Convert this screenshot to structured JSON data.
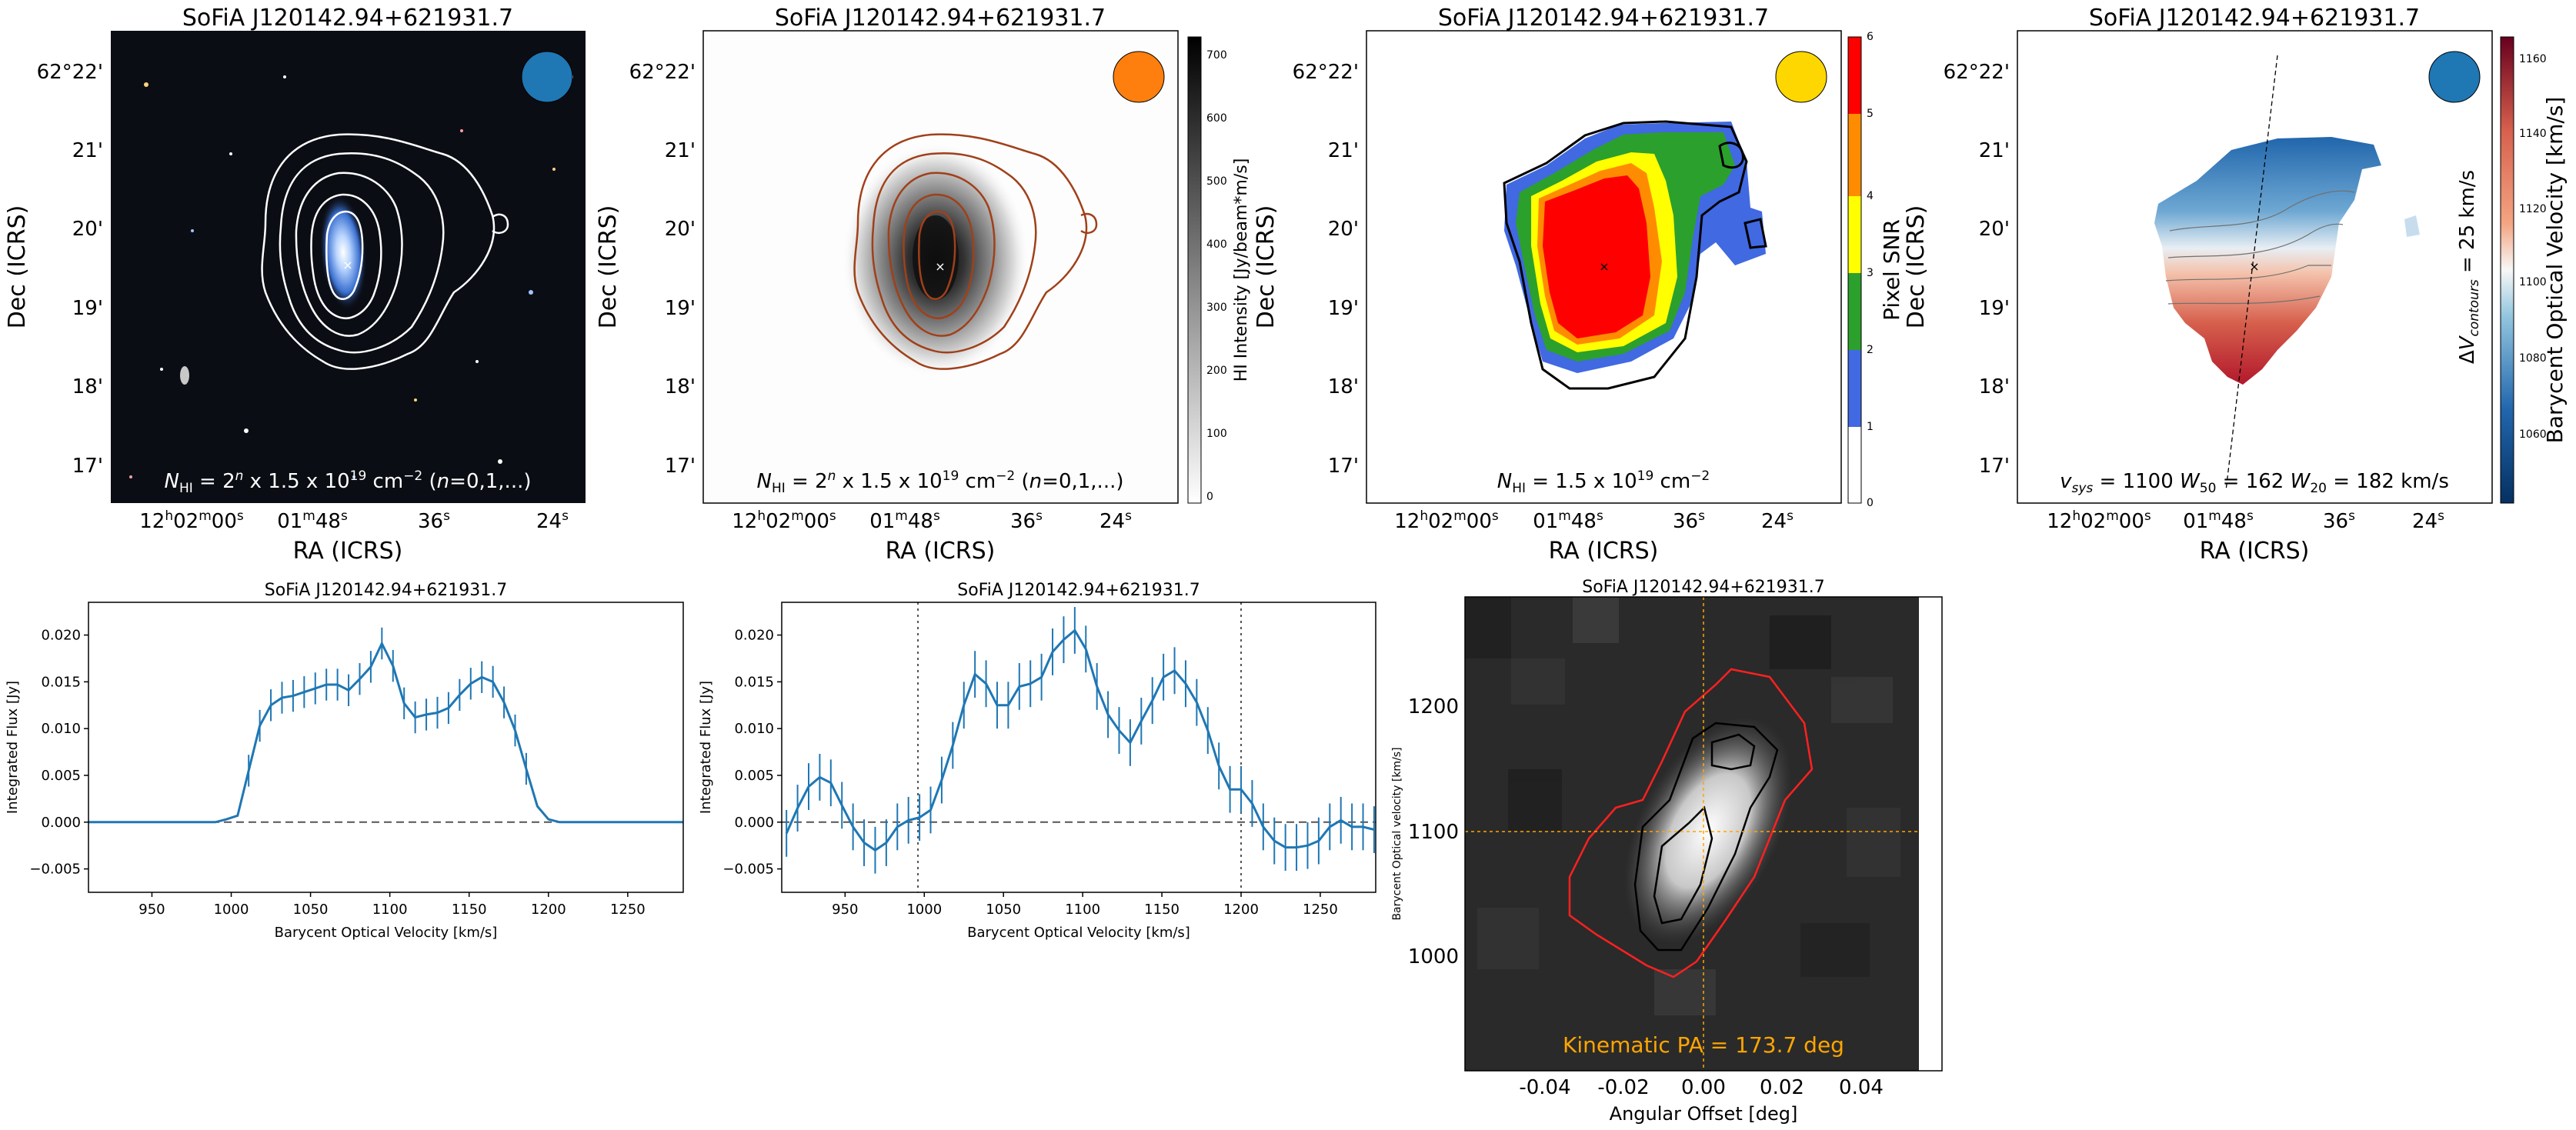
{
  "figure": {
    "panels_top": [
      {
        "title": "SoFiA J120142.94+621931.7",
        "xlabel": "RA (ICRS)",
        "ylabel": "Dec (ICRS)",
        "xticks": [
          "12h02m00s",
          "01m48s",
          "36s",
          "24s"
        ],
        "yticks": [
          "62°22'",
          "21'",
          "20'",
          "19'",
          "18'",
          "17'"
        ],
        "note_prefix": "N",
        "note_sub": "HI",
        "note_text": " = 2^n x 1.5 x 10^19 cm^-2 (n=0,1,...)",
        "beam_color": "#1f77b4",
        "contour_color": "#ffffff"
      },
      {
        "title": "SoFiA J120142.94+621931.7",
        "xlabel": "RA (ICRS)",
        "ylabel": "Dec (ICRS)",
        "xticks": [
          "12h02m00s",
          "01m48s",
          "36s",
          "24s"
        ],
        "yticks": [
          "62°22'",
          "21'",
          "20'",
          "19'",
          "18'",
          "17'"
        ],
        "note_prefix": "N",
        "note_sub": "HI",
        "note_text": " = 2^n x 1.5 x 10^19 cm^-2 (n=0,1,...)",
        "beam_color": "#ff7f0e",
        "contour_color": "#a0401a",
        "colorbar": {
          "label": "HI Intensity [Jy/beam*m/s]",
          "ticks": [
            "0",
            "100",
            "200",
            "300",
            "400",
            "500",
            "600",
            "700"
          ]
        }
      },
      {
        "title": "SoFiA J120142.94+621931.7",
        "xlabel": "RA (ICRS)",
        "ylabel": "Dec (ICRS)",
        "xticks": [
          "12h02m00s",
          "01m48s",
          "36s",
          "24s"
        ],
        "yticks": [
          "62°22'",
          "21'",
          "20'",
          "19'",
          "18'",
          "17'"
        ],
        "note_prefix": "N",
        "note_sub": "HI",
        "note_text": " = 1.5 x 10^19 cm^-2",
        "beam_color": "#ffd700",
        "colorbar": {
          "label": "Pixel SNR",
          "ticks": [
            "0",
            "1",
            "2",
            "3",
            "4",
            "5",
            "6"
          ],
          "colors": [
            "#ffffff",
            "#4169e1",
            "#2ca02c",
            "#ffff00",
            "#ff8c00",
            "#ff0000"
          ]
        }
      },
      {
        "title": "SoFiA J120142.94+621931.7",
        "xlabel": "RA (ICRS)",
        "ylabel": "Dec (ICRS)",
        "xticks": [
          "12h02m00s",
          "01m48s",
          "36s",
          "24s"
        ],
        "yticks": [
          "62°22'",
          "21'",
          "20'",
          "19'",
          "18'",
          "17'"
        ],
        "note_text": "v_sys = 1100  W_50 = 162  W_20 = 182 km/s",
        "beam_color": "#1f77b4",
        "side_label": "ΔV_contours = 25 km/s",
        "colorbar": {
          "label": "Barycent Optical Velocity [km/s]",
          "ticks": [
            "1060",
            "1080",
            "1100",
            "1120",
            "1140",
            "1160"
          ]
        }
      }
    ],
    "pv": {
      "title": "SoFiA J120142.94+621931.7",
      "xlabel": "Angular Offset [deg]",
      "ylabel": "Barycent Optical velocity [km/s]",
      "note": "Kinematic PA = 173.7 deg",
      "xticks": [
        "-0.04",
        "-0.02",
        "0.00",
        "0.02",
        "0.04"
      ],
      "yticks": [
        "1000",
        "1100",
        "1200"
      ]
    }
  },
  "chart_data": [
    {
      "type": "line",
      "title": "SoFiA J120142.94+621931.7",
      "xlabel": "Barycent Optical Velocity [km/s]",
      "ylabel": "Integrated Flux [Jy]",
      "xlim": [
        910,
        1285
      ],
      "ylim": [
        -0.0075,
        0.0235
      ],
      "xticks": [
        950,
        1000,
        1050,
        1100,
        1150,
        1200,
        1250
      ],
      "xtick_labels": [
        "950",
        "1000",
        "1050",
        "1100",
        "1150",
        "1200",
        "1250"
      ],
      "yticks": [
        -0.005,
        0.0,
        0.005,
        0.01,
        0.015,
        0.02
      ],
      "ytick_labels": [
        "−0.005",
        "0.000",
        "0.005",
        "0.010",
        "0.015",
        "0.020"
      ],
      "color": "#1f77b4",
      "hlines": [
        0
      ],
      "vlines": [],
      "x": [
        910,
        990,
        997,
        1004,
        1011,
        1018,
        1025,
        1032,
        1039,
        1046,
        1053,
        1060,
        1067,
        1074,
        1081,
        1088,
        1095,
        1102,
        1109,
        1116,
        1123,
        1130,
        1137,
        1144,
        1151,
        1158,
        1165,
        1172,
        1179,
        1186,
        1193,
        1200,
        1207,
        1214,
        1285
      ],
      "y": [
        0,
        0,
        0.0003,
        0.0007,
        0.0055,
        0.0103,
        0.0125,
        0.0133,
        0.0135,
        0.0139,
        0.0143,
        0.0147,
        0.0147,
        0.0141,
        0.0153,
        0.0166,
        0.0191,
        0.0167,
        0.0127,
        0.0112,
        0.0115,
        0.0117,
        0.0122,
        0.0136,
        0.0148,
        0.0155,
        0.015,
        0.0128,
        0.0098,
        0.0057,
        0.0017,
        0.0003,
        0,
        0,
        0
      ],
      "err": [
        0,
        0,
        0,
        0,
        0.0017,
        0.0017,
        0.0017,
        0.0017,
        0.0017,
        0.0017,
        0.0017,
        0.0017,
        0.0017,
        0.0017,
        0.0017,
        0.0017,
        0.0017,
        0.0017,
        0.0017,
        0.0017,
        0.0017,
        0.0017,
        0.0017,
        0.0017,
        0.0017,
        0.0017,
        0.0017,
        0.0017,
        0.0017,
        0.0017,
        0,
        0,
        0,
        0,
        0
      ]
    },
    {
      "type": "line",
      "title": "SoFiA J120142.94+621931.7",
      "xlabel": "Barycent Optical Velocity [km/s]",
      "ylabel": "Integrated Flux [Jy]",
      "xlim": [
        910,
        1285
      ],
      "ylim": [
        -0.0075,
        0.0235
      ],
      "xticks": [
        950,
        1000,
        1050,
        1100,
        1150,
        1200,
        1250
      ],
      "xtick_labels": [
        "950",
        "1000",
        "1050",
        "1100",
        "1150",
        "1200",
        "1250"
      ],
      "yticks": [
        -0.005,
        0.0,
        0.005,
        0.01,
        0.015,
        0.02
      ],
      "ytick_labels": [
        "−0.005",
        "0.000",
        "0.005",
        "0.010",
        "0.015",
        "0.020"
      ],
      "color": "#1f77b4",
      "hlines": [
        0
      ],
      "vlines": [
        996,
        1200
      ],
      "x": [
        913,
        920,
        927,
        934,
        941,
        948,
        955,
        962,
        969,
        976,
        983,
        990,
        997,
        1004,
        1011,
        1018,
        1025,
        1032,
        1039,
        1046,
        1053,
        1060,
        1067,
        1074,
        1081,
        1088,
        1095,
        1102,
        1109,
        1116,
        1123,
        1130,
        1137,
        1144,
        1151,
        1158,
        1165,
        1172,
        1179,
        1186,
        1193,
        1200,
        1207,
        1214,
        1221,
        1228,
        1235,
        1242,
        1249,
        1256,
        1263,
        1270,
        1277,
        1284
      ],
      "y": [
        -0.0012,
        0.0015,
        0.0038,
        0.0048,
        0.0042,
        0.0018,
        -0.0005,
        -0.0022,
        -0.003,
        -0.0022,
        -0.0005,
        0.0002,
        0.0005,
        0.0013,
        0.0045,
        0.0082,
        0.0125,
        0.0158,
        0.0148,
        0.0125,
        0.0125,
        0.0145,
        0.0148,
        0.0155,
        0.0182,
        0.0195,
        0.0205,
        0.0185,
        0.0145,
        0.0115,
        0.0098,
        0.0085,
        0.0108,
        0.013,
        0.0155,
        0.0162,
        0.0148,
        0.0128,
        0.0098,
        0.006,
        0.0035,
        0.0035,
        0.002,
        -0.0005,
        -0.002,
        -0.0027,
        -0.0027,
        -0.0025,
        -0.002,
        -0.0005,
        0.0002,
        -0.0005,
        -0.0005,
        -0.0008
      ],
      "err": 0.0025
    }
  ]
}
